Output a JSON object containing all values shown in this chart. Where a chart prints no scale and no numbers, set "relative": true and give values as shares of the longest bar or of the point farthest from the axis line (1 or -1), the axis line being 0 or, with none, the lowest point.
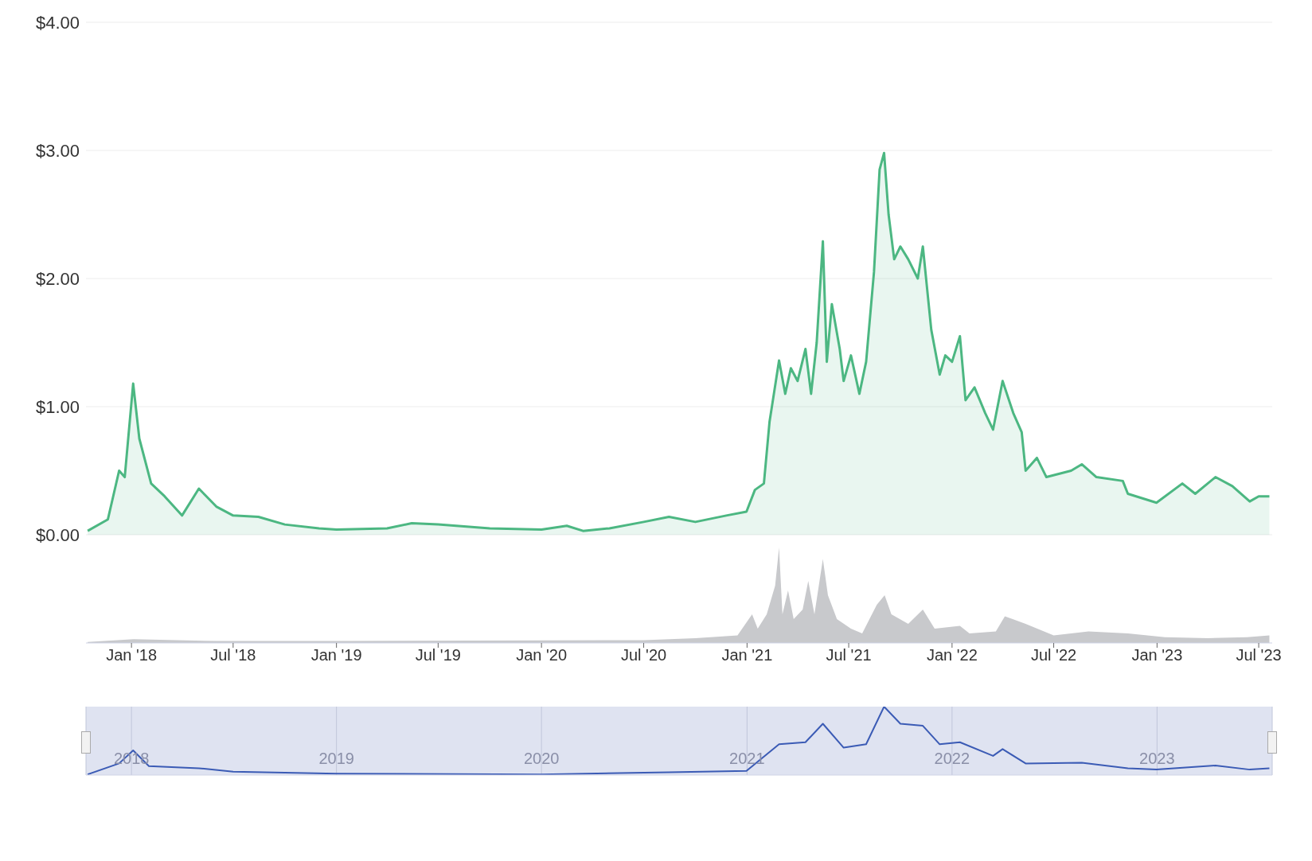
{
  "chart_data": [
    {
      "type": "area",
      "x": [
        "2017-10-15",
        "2017-11-20",
        "2017-12-10",
        "2017-12-20",
        "2018-01-04",
        "2018-01-15",
        "2018-02-05",
        "2018-03-01",
        "2018-04-01",
        "2018-05-01",
        "2018-06-01",
        "2018-07-01",
        "2018-08-15",
        "2018-10-01",
        "2018-12-01",
        "2019-01-01",
        "2019-04-01",
        "2019-05-15",
        "2019-07-01",
        "2019-10-01",
        "2020-01-01",
        "2020-02-15",
        "2020-03-15",
        "2020-05-01",
        "2020-07-01",
        "2020-08-15",
        "2020-10-01",
        "2020-11-25",
        "2020-12-31",
        "2021-01-15",
        "2021-01-31",
        "2021-02-10",
        "2021-02-27",
        "2021-03-10",
        "2021-03-20",
        "2021-04-01",
        "2021-04-15",
        "2021-04-25",
        "2021-05-05",
        "2021-05-16",
        "2021-05-23",
        "2021-06-01",
        "2021-06-15",
        "2021-06-22",
        "2021-07-05",
        "2021-07-20",
        "2021-08-01",
        "2021-08-15",
        "2021-08-25",
        "2021-09-02",
        "2021-09-10",
        "2021-09-20",
        "2021-10-01",
        "2021-10-15",
        "2021-11-01",
        "2021-11-10",
        "2021-11-25",
        "2021-12-10",
        "2021-12-20",
        "2022-01-01",
        "2022-01-15",
        "2022-01-25",
        "2022-02-10",
        "2022-03-01",
        "2022-03-15",
        "2022-04-01",
        "2022-04-20",
        "2022-05-05",
        "2022-05-12",
        "2022-06-01",
        "2022-06-18",
        "2022-08-01",
        "2022-08-20",
        "2022-09-15",
        "2022-11-01",
        "2022-11-10",
        "2022-12-31",
        "2023-02-15",
        "2023-03-10",
        "2023-04-15",
        "2023-05-15",
        "2023-06-15",
        "2023-07-01",
        "2023-07-20"
      ],
      "series": [
        {
          "color": "#4cb782",
          "values": [
            0.03,
            0.12,
            0.5,
            0.45,
            1.18,
            0.75,
            0.4,
            0.3,
            0.15,
            0.36,
            0.22,
            0.15,
            0.14,
            0.08,
            0.05,
            0.04,
            0.05,
            0.09,
            0.08,
            0.05,
            0.04,
            0.07,
            0.03,
            0.05,
            0.1,
            0.14,
            0.1,
            0.15,
            0.18,
            0.35,
            0.4,
            0.88,
            1.36,
            1.1,
            1.3,
            1.2,
            1.45,
            1.1,
            1.5,
            2.29,
            1.35,
            1.8,
            1.45,
            1.2,
            1.4,
            1.1,
            1.35,
            2.05,
            2.85,
            2.98,
            2.5,
            2.15,
            2.25,
            2.15,
            2.0,
            2.25,
            1.6,
            1.25,
            1.4,
            1.35,
            1.55,
            1.05,
            1.15,
            0.95,
            0.82,
            1.2,
            0.95,
            0.8,
            0.5,
            0.6,
            0.45,
            0.5,
            0.55,
            0.45,
            0.42,
            0.32,
            0.25,
            0.4,
            0.32,
            0.45,
            0.38,
            0.26,
            0.3,
            0.3
          ]
        }
      ],
      "xlim": [
        "2017-10-12",
        "2023-07-25"
      ],
      "ylim": [
        0,
        4
      ],
      "yticks": [
        {
          "value": 0,
          "label": "$0.00"
        },
        {
          "value": 1,
          "label": "$1.00"
        },
        {
          "value": 2,
          "label": "$2.00"
        },
        {
          "value": 3,
          "label": "$3.00"
        },
        {
          "value": 4,
          "label": "$4.00"
        }
      ],
      "grid": "y",
      "tick_labels": "y"
    },
    {
      "type": "area",
      "relative": true,
      "x": [
        "2017-10-15",
        "2018-01-05",
        "2018-06-01",
        "2019-01-01",
        "2020-07-01",
        "2020-10-01",
        "2020-12-15",
        "2021-01-10",
        "2021-01-20",
        "2021-02-05",
        "2021-02-20",
        "2021-02-27",
        "2021-03-05",
        "2021-03-15",
        "2021-03-25",
        "2021-04-10",
        "2021-04-20",
        "2021-05-01",
        "2021-05-16",
        "2021-05-25",
        "2021-06-10",
        "2021-07-05",
        "2021-07-25",
        "2021-08-20",
        "2021-09-03",
        "2021-09-15",
        "2021-10-15",
        "2021-11-10",
        "2021-12-01",
        "2022-01-15",
        "2022-02-01",
        "2022-03-20",
        "2022-04-05",
        "2022-05-12",
        "2022-07-01",
        "2022-09-01",
        "2022-11-10",
        "2023-01-15",
        "2023-04-01",
        "2023-06-10",
        "2023-07-20"
      ],
      "series": [
        {
          "color": "#c8c9cc",
          "values": [
            0.01,
            0.04,
            0.02,
            0.02,
            0.03,
            0.05,
            0.08,
            0.3,
            0.15,
            0.3,
            0.6,
            1.0,
            0.3,
            0.55,
            0.25,
            0.35,
            0.65,
            0.3,
            0.88,
            0.5,
            0.25,
            0.15,
            0.1,
            0.4,
            0.5,
            0.3,
            0.2,
            0.35,
            0.15,
            0.18,
            0.1,
            0.12,
            0.28,
            0.2,
            0.08,
            0.12,
            0.1,
            0.06,
            0.05,
            0.06,
            0.08
          ]
        }
      ],
      "xlim": [
        "2017-10-12",
        "2023-07-25"
      ],
      "xticks": [
        {
          "value": "2018-01-01",
          "label": "Jan '18"
        },
        {
          "value": "2018-07-01",
          "label": "Jul '18"
        },
        {
          "value": "2019-01-01",
          "label": "Jan '19"
        },
        {
          "value": "2019-07-01",
          "label": "Jul '19"
        },
        {
          "value": "2020-01-01",
          "label": "Jan '20"
        },
        {
          "value": "2020-07-01",
          "label": "Jul '20"
        },
        {
          "value": "2021-01-01",
          "label": "Jan '21"
        },
        {
          "value": "2021-07-01",
          "label": "Jul '21"
        },
        {
          "value": "2022-01-01",
          "label": "Jan '22"
        },
        {
          "value": "2022-07-01",
          "label": "Jul '22"
        },
        {
          "value": "2023-01-01",
          "label": "Jan '23"
        },
        {
          "value": "2023-07-01",
          "label": "Jul '23"
        }
      ],
      "tick_labels": "x"
    },
    {
      "type": "line",
      "relative": true,
      "x": [
        "2017-10-15",
        "2017-12-10",
        "2018-01-04",
        "2018-02-01",
        "2018-05-01",
        "2018-07-01",
        "2019-01-01",
        "2020-01-01",
        "2020-08-15",
        "2020-12-31",
        "2021-02-27",
        "2021-04-15",
        "2021-05-16",
        "2021-06-22",
        "2021-08-01",
        "2021-09-02",
        "2021-10-01",
        "2021-11-10",
        "2021-12-10",
        "2022-01-15",
        "2022-03-15",
        "2022-04-01",
        "2022-05-12",
        "2022-08-20",
        "2022-11-10",
        "2022-12-31",
        "2023-04-15",
        "2023-06-15",
        "2023-07-20"
      ],
      "series": [
        {
          "color": "#3b5bb5",
          "values": [
            0.01,
            0.17,
            0.36,
            0.13,
            0.1,
            0.05,
            0.02,
            0.01,
            0.04,
            0.06,
            0.45,
            0.48,
            0.75,
            0.4,
            0.45,
            1.0,
            0.75,
            0.72,
            0.45,
            0.48,
            0.28,
            0.38,
            0.17,
            0.18,
            0.1,
            0.08,
            0.14,
            0.08,
            0.1
          ]
        }
      ],
      "xlim": [
        "2017-10-12",
        "2023-07-25"
      ],
      "xticks": [
        {
          "value": "2018-01-01",
          "label": "2018"
        },
        {
          "value": "2019-01-01",
          "label": "2019"
        },
        {
          "value": "2020-01-01",
          "label": "2020"
        },
        {
          "value": "2021-01-01",
          "label": "2021"
        },
        {
          "value": "2022-01-01",
          "label": "2022"
        },
        {
          "value": "2023-01-01",
          "label": "2023"
        }
      ],
      "grid": "x",
      "tick_labels": "x"
    }
  ]
}
